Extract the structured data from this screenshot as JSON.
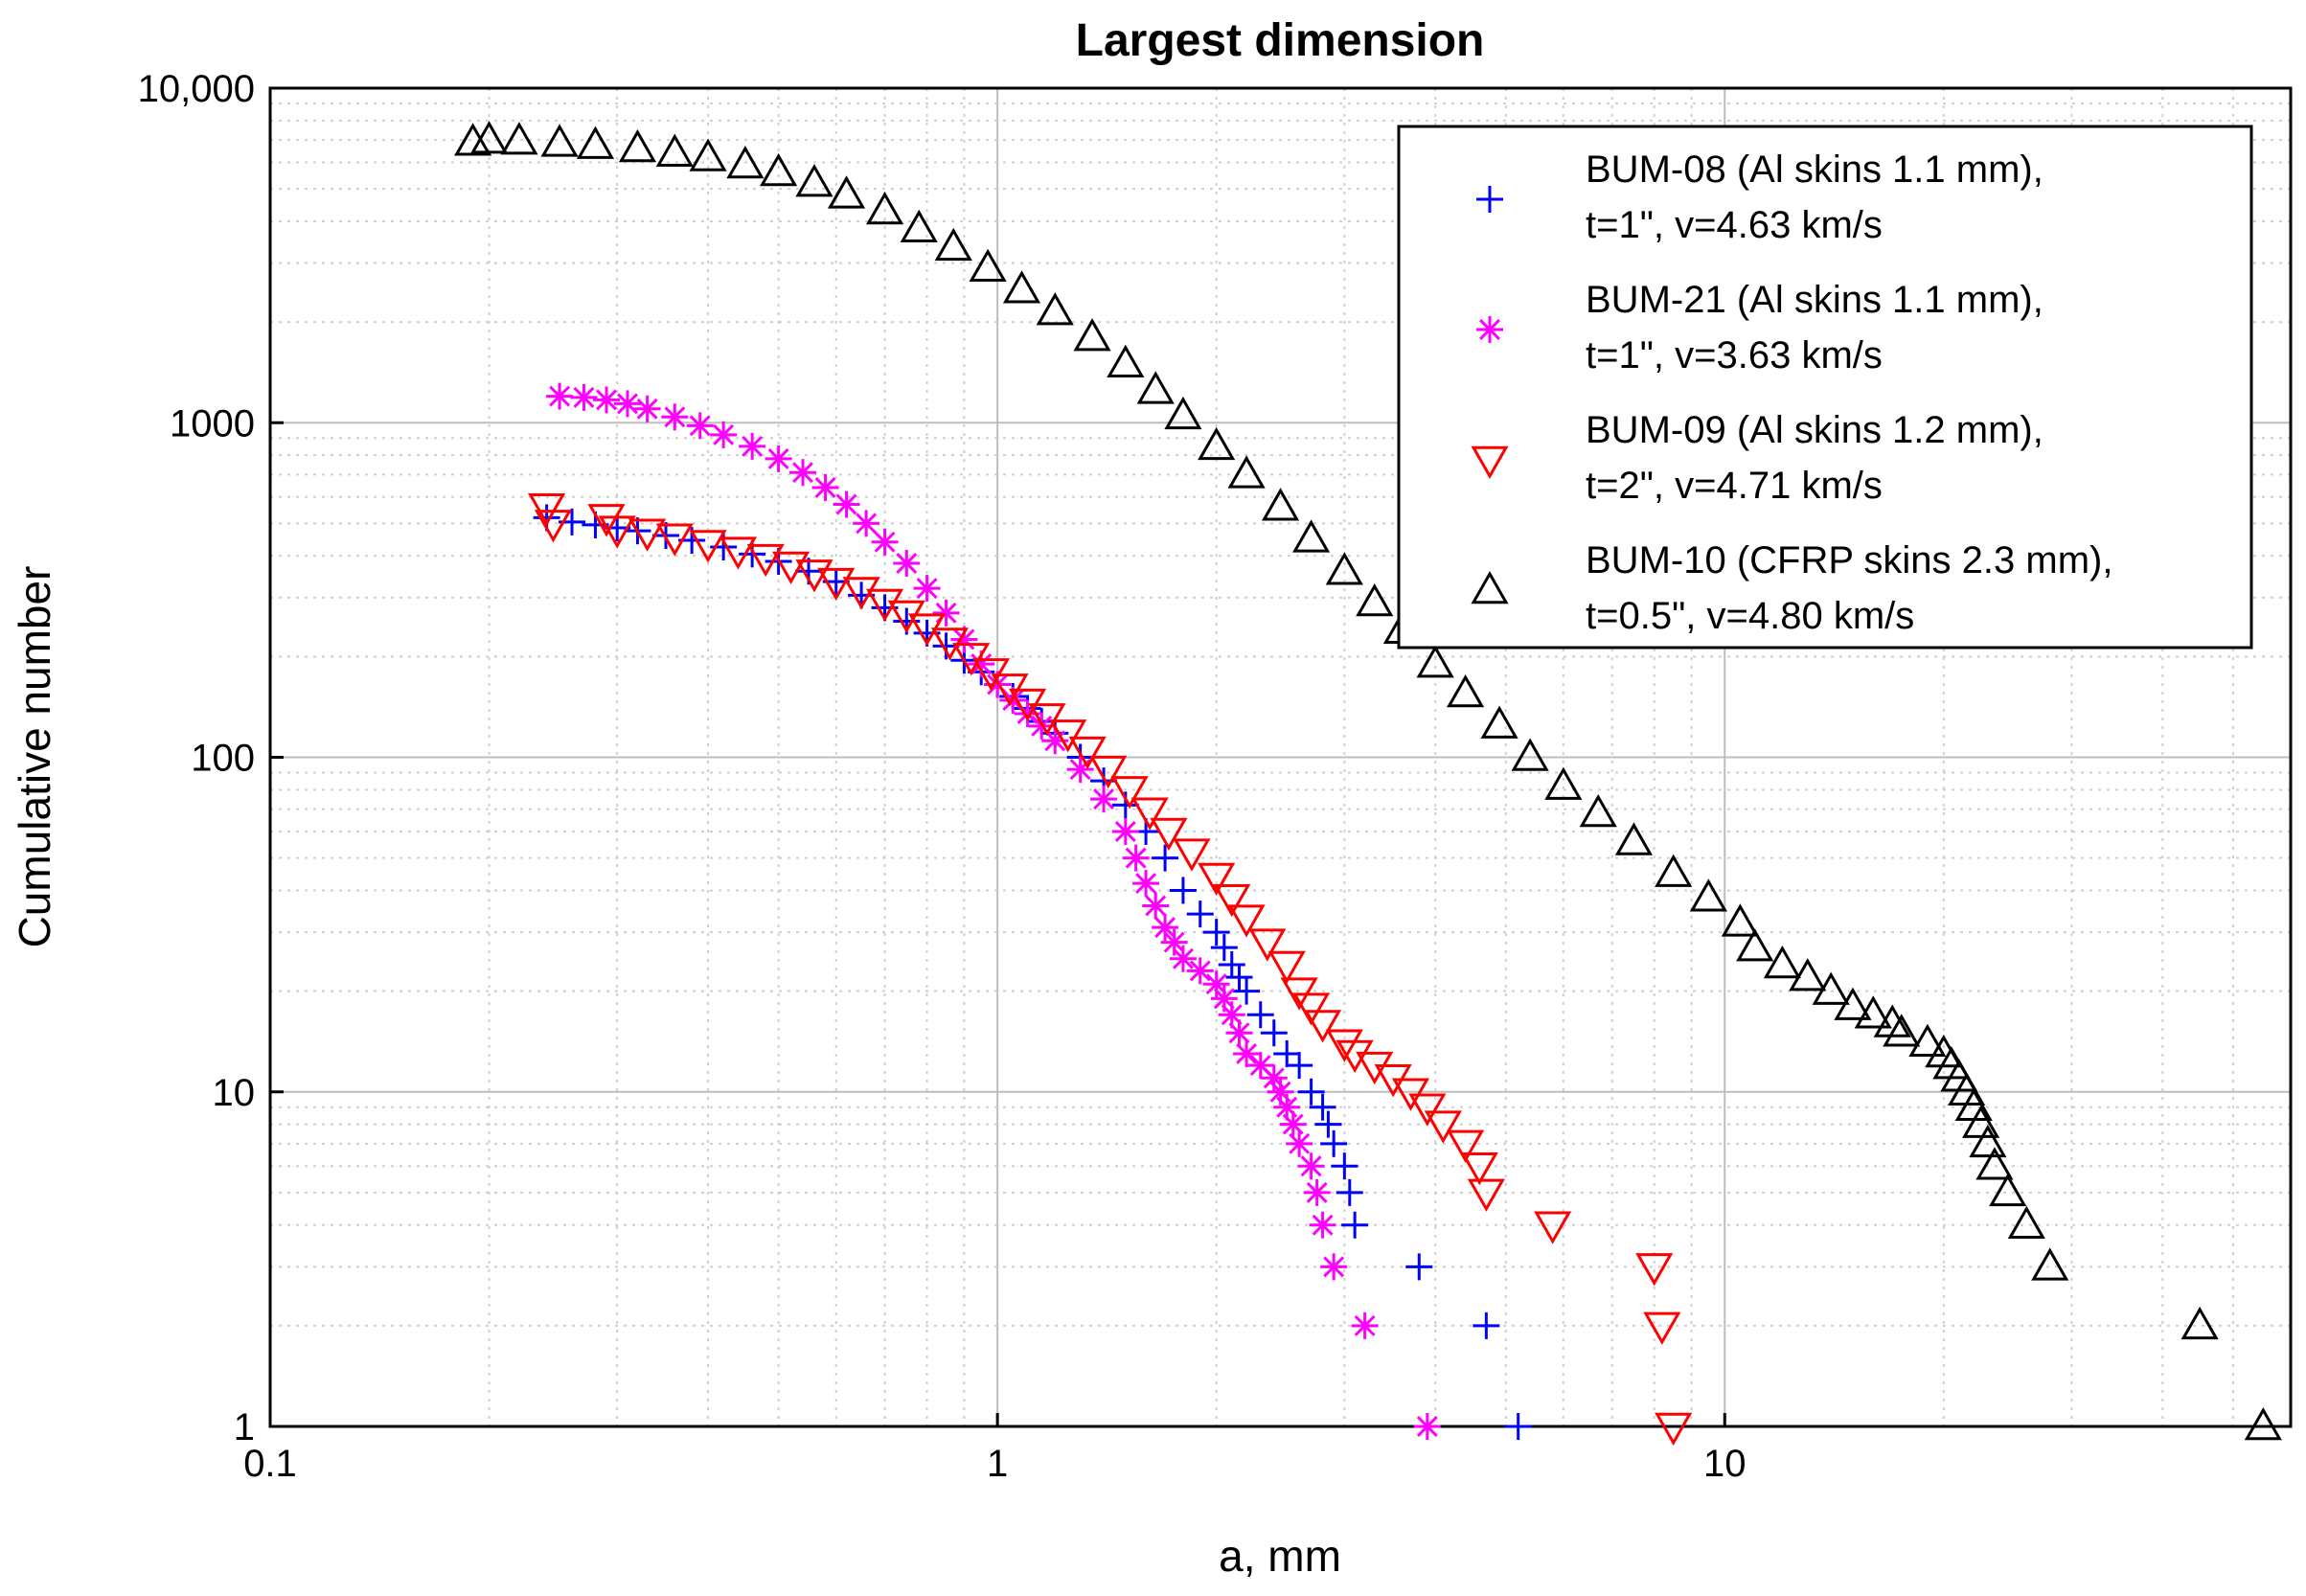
{
  "chart_data": {
    "type": "scatter",
    "title": "Largest dimension",
    "xlabel": "a, mm",
    "ylabel": "Cumulative number",
    "xscale": "log",
    "yscale": "log",
    "xlim": [
      0.1,
      60
    ],
    "ylim": [
      1,
      10000
    ],
    "grid": true,
    "x_ticks": [
      {
        "value": 0.1,
        "label": "0.1"
      },
      {
        "value": 1,
        "label": "1"
      },
      {
        "value": 10,
        "label": "10"
      }
    ],
    "y_ticks": [
      {
        "value": 1,
        "label": "1"
      },
      {
        "value": 10,
        "label": "10"
      },
      {
        "value": 100,
        "label": "100"
      },
      {
        "value": 1000,
        "label": "1000"
      },
      {
        "value": 10000,
        "label": "10,000"
      }
    ],
    "legend_position": "top-right",
    "series": [
      {
        "name": "BUM-08",
        "legend_lines": [
          "BUM-08 (Al skins 1.1 mm),",
          "t=1\", v=4.63 km/s"
        ],
        "marker": "plus",
        "color": "#0000ff",
        "points": [
          [
            0.24,
            520
          ],
          [
            0.26,
            505
          ],
          [
            0.28,
            495
          ],
          [
            0.3,
            485
          ],
          [
            0.32,
            475
          ],
          [
            0.35,
            460
          ],
          [
            0.38,
            445
          ],
          [
            0.42,
            425
          ],
          [
            0.46,
            405
          ],
          [
            0.5,
            385
          ],
          [
            0.55,
            360
          ],
          [
            0.6,
            335
          ],
          [
            0.65,
            305
          ],
          [
            0.7,
            280
          ],
          [
            0.75,
            255
          ],
          [
            0.8,
            235
          ],
          [
            0.85,
            215
          ],
          [
            0.9,
            195
          ],
          [
            0.95,
            180
          ],
          [
            1.0,
            165
          ],
          [
            1.05,
            152
          ],
          [
            1.1,
            140
          ],
          [
            1.15,
            128
          ],
          [
            1.2,
            118
          ],
          [
            1.3,
            100
          ],
          [
            1.4,
            85
          ],
          [
            1.5,
            72
          ],
          [
            1.6,
            60
          ],
          [
            1.7,
            50
          ],
          [
            1.8,
            40
          ],
          [
            1.9,
            34
          ],
          [
            2.0,
            30
          ],
          [
            2.05,
            27
          ],
          [
            2.1,
            24
          ],
          [
            2.15,
            22
          ],
          [
            2.2,
            20
          ],
          [
            2.3,
            17
          ],
          [
            2.4,
            15
          ],
          [
            2.5,
            13
          ],
          [
            2.6,
            12
          ],
          [
            2.7,
            10
          ],
          [
            2.8,
            9
          ],
          [
            2.85,
            8
          ],
          [
            2.9,
            7
          ],
          [
            3.0,
            6
          ],
          [
            3.05,
            5
          ],
          [
            3.1,
            4
          ],
          [
            3.8,
            3
          ],
          [
            4.7,
            2
          ],
          [
            5.2,
            1
          ]
        ]
      },
      {
        "name": "BUM-21",
        "legend_lines": [
          "BUM-21 (Al skins 1.1 mm),",
          "t=1\", v=3.63 km/s"
        ],
        "marker": "asterisk",
        "color": "#ff00ff",
        "points": [
          [
            0.25,
            1200
          ],
          [
            0.27,
            1190
          ],
          [
            0.29,
            1170
          ],
          [
            0.31,
            1140
          ],
          [
            0.33,
            1100
          ],
          [
            0.36,
            1040
          ],
          [
            0.39,
            980
          ],
          [
            0.42,
            920
          ],
          [
            0.46,
            850
          ],
          [
            0.5,
            780
          ],
          [
            0.54,
            710
          ],
          [
            0.58,
            640
          ],
          [
            0.62,
            570
          ],
          [
            0.66,
            500
          ],
          [
            0.7,
            440
          ],
          [
            0.75,
            380
          ],
          [
            0.8,
            320
          ],
          [
            0.85,
            270
          ],
          [
            0.9,
            225
          ],
          [
            0.95,
            190
          ],
          [
            1.0,
            165
          ],
          [
            1.05,
            148
          ],
          [
            1.1,
            135
          ],
          [
            1.15,
            124
          ],
          [
            1.2,
            112
          ],
          [
            1.3,
            92
          ],
          [
            1.4,
            75
          ],
          [
            1.5,
            60
          ],
          [
            1.55,
            50
          ],
          [
            1.6,
            42
          ],
          [
            1.65,
            36
          ],
          [
            1.7,
            31
          ],
          [
            1.75,
            28
          ],
          [
            1.8,
            25
          ],
          [
            1.9,
            23
          ],
          [
            2.0,
            21
          ],
          [
            2.05,
            19
          ],
          [
            2.1,
            17
          ],
          [
            2.15,
            15
          ],
          [
            2.2,
            13
          ],
          [
            2.3,
            12
          ],
          [
            2.4,
            11
          ],
          [
            2.45,
            10
          ],
          [
            2.5,
            9
          ],
          [
            2.55,
            8
          ],
          [
            2.6,
            7
          ],
          [
            2.7,
            6
          ],
          [
            2.75,
            5
          ],
          [
            2.8,
            4
          ],
          [
            2.9,
            3
          ],
          [
            3.2,
            2
          ],
          [
            3.9,
            1
          ]
        ]
      },
      {
        "name": "BUM-09",
        "legend_lines": [
          "BUM-09 (Al skins 1.2 mm),",
          " t=2\", v=4.71 km/s"
        ],
        "marker": "triangle-down",
        "color": "#ff0000",
        "points": [
          [
            0.24,
            560
          ],
          [
            0.245,
            500
          ],
          [
            0.29,
            520
          ],
          [
            0.3,
            480
          ],
          [
            0.33,
            470
          ],
          [
            0.36,
            455
          ],
          [
            0.4,
            435
          ],
          [
            0.44,
            415
          ],
          [
            0.48,
            395
          ],
          [
            0.52,
            375
          ],
          [
            0.56,
            355
          ],
          [
            0.6,
            335
          ],
          [
            0.65,
            315
          ],
          [
            0.7,
            290
          ],
          [
            0.75,
            268
          ],
          [
            0.8,
            245
          ],
          [
            0.86,
            222
          ],
          [
            0.92,
            200
          ],
          [
            0.98,
            180
          ],
          [
            1.04,
            162
          ],
          [
            1.1,
            146
          ],
          [
            1.17,
            132
          ],
          [
            1.25,
            118
          ],
          [
            1.33,
            105
          ],
          [
            1.42,
            92
          ],
          [
            1.52,
            80
          ],
          [
            1.62,
            69
          ],
          [
            1.72,
            60
          ],
          [
            1.85,
            52
          ],
          [
            2.0,
            44
          ],
          [
            2.1,
            38
          ],
          [
            2.2,
            33
          ],
          [
            2.35,
            28
          ],
          [
            2.5,
            24
          ],
          [
            2.6,
            20
          ],
          [
            2.7,
            18
          ],
          [
            2.8,
            16
          ],
          [
            3.0,
            14
          ],
          [
            3.1,
            13
          ],
          [
            3.3,
            12
          ],
          [
            3.5,
            11
          ],
          [
            3.7,
            10
          ],
          [
            3.9,
            9
          ],
          [
            4.1,
            8
          ],
          [
            4.4,
            7
          ],
          [
            4.6,
            6
          ],
          [
            4.7,
            5
          ],
          [
            5.8,
            4
          ],
          [
            8.0,
            3
          ],
          [
            8.2,
            2
          ],
          [
            8.5,
            1
          ]
        ]
      },
      {
        "name": "BUM-10",
        "legend_lines": [
          "BUM-10 (CFRP skins 2.3 mm),",
          " t=0.5\", v=4.80 km/s"
        ],
        "marker": "triangle-up",
        "color": "#000000",
        "points": [
          [
            0.19,
            6900
          ],
          [
            0.2,
            7000
          ],
          [
            0.22,
            6950
          ],
          [
            0.25,
            6850
          ],
          [
            0.28,
            6750
          ],
          [
            0.32,
            6600
          ],
          [
            0.36,
            6400
          ],
          [
            0.4,
            6200
          ],
          [
            0.45,
            5900
          ],
          [
            0.5,
            5600
          ],
          [
            0.56,
            5200
          ],
          [
            0.62,
            4800
          ],
          [
            0.7,
            4300
          ],
          [
            0.78,
            3800
          ],
          [
            0.87,
            3350
          ],
          [
            0.97,
            2900
          ],
          [
            1.08,
            2500
          ],
          [
            1.2,
            2150
          ],
          [
            1.35,
            1800
          ],
          [
            1.5,
            1500
          ],
          [
            1.65,
            1250
          ],
          [
            1.8,
            1050
          ],
          [
            2.0,
            850
          ],
          [
            2.2,
            700
          ],
          [
            2.45,
            560
          ],
          [
            2.7,
            450
          ],
          [
            3.0,
            360
          ],
          [
            3.3,
            290
          ],
          [
            3.6,
            240
          ],
          [
            4.0,
            190
          ],
          [
            4.4,
            155
          ],
          [
            4.9,
            125
          ],
          [
            5.4,
            100
          ],
          [
            6.0,
            82
          ],
          [
            6.7,
            68
          ],
          [
            7.5,
            56
          ],
          [
            8.5,
            45
          ],
          [
            9.5,
            38
          ],
          [
            10.5,
            32
          ],
          [
            11.0,
            27
          ],
          [
            12.0,
            24
          ],
          [
            13.0,
            22
          ],
          [
            14.0,
            20
          ],
          [
            15.0,
            18
          ],
          [
            16.0,
            17
          ],
          [
            17.0,
            16
          ],
          [
            17.5,
            15
          ],
          [
            19.0,
            14
          ],
          [
            20.0,
            13
          ],
          [
            20.5,
            12
          ],
          [
            21.0,
            11
          ],
          [
            21.5,
            10
          ],
          [
            22.0,
            9
          ],
          [
            22.5,
            8
          ],
          [
            23.0,
            7
          ],
          [
            23.5,
            6
          ],
          [
            24.5,
            5
          ],
          [
            26.0,
            4
          ],
          [
            28.0,
            3
          ],
          [
            45.0,
            2
          ],
          [
            55.0,
            1
          ]
        ]
      }
    ]
  }
}
